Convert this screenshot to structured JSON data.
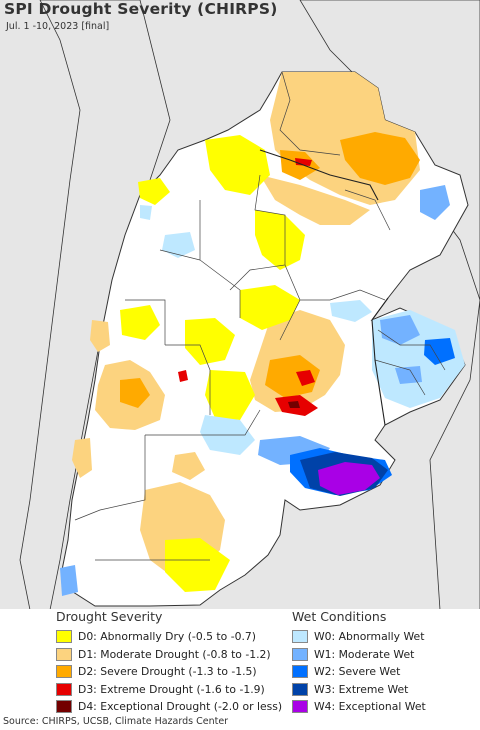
{
  "title": "SPI Drought Severity (CHIRPS)",
  "subtitle": "Jul. 1 -10, 2023 [final]",
  "colors": {
    "ocean": "#e6e6e6",
    "land_outside": "#e6e6e6",
    "land_inside": "#ffffff",
    "borders": "#333333"
  },
  "legend": {
    "drought": {
      "heading": "Drought Severity",
      "items": [
        {
          "label": "D0: Abnormally Dry (-0.5 to -0.7)",
          "color": "#ffff00"
        },
        {
          "label": "D1: Moderate Drought (-0.8 to -1.2)",
          "color": "#fcd37f"
        },
        {
          "label": "D2: Severe Drought (-1.3 to -1.5)",
          "color": "#ffaa00"
        },
        {
          "label": "D3: Extreme Drought (-1.6 to -1.9)",
          "color": "#e60000"
        },
        {
          "label": "D4: Exceptional Drought (-2.0 or less)",
          "color": "#730000"
        }
      ]
    },
    "wet": {
      "heading": "Wet Conditions",
      "items": [
        {
          "label": "W0: Abnormally Wet",
          "color": "#bee8ff"
        },
        {
          "label": "W1: Moderate Wet",
          "color": "#73b2ff"
        },
        {
          "label": "W2: Severe Wet",
          "color": "#0070ff"
        },
        {
          "label": "W3: Extreme Wet",
          "color": "#0042a8"
        },
        {
          "label": "W4: Exceptional Wet",
          "color": "#a900e6"
        }
      ]
    }
  },
  "footer": "Source: CHIRPS, UCSB, Climate Hazards Center"
}
